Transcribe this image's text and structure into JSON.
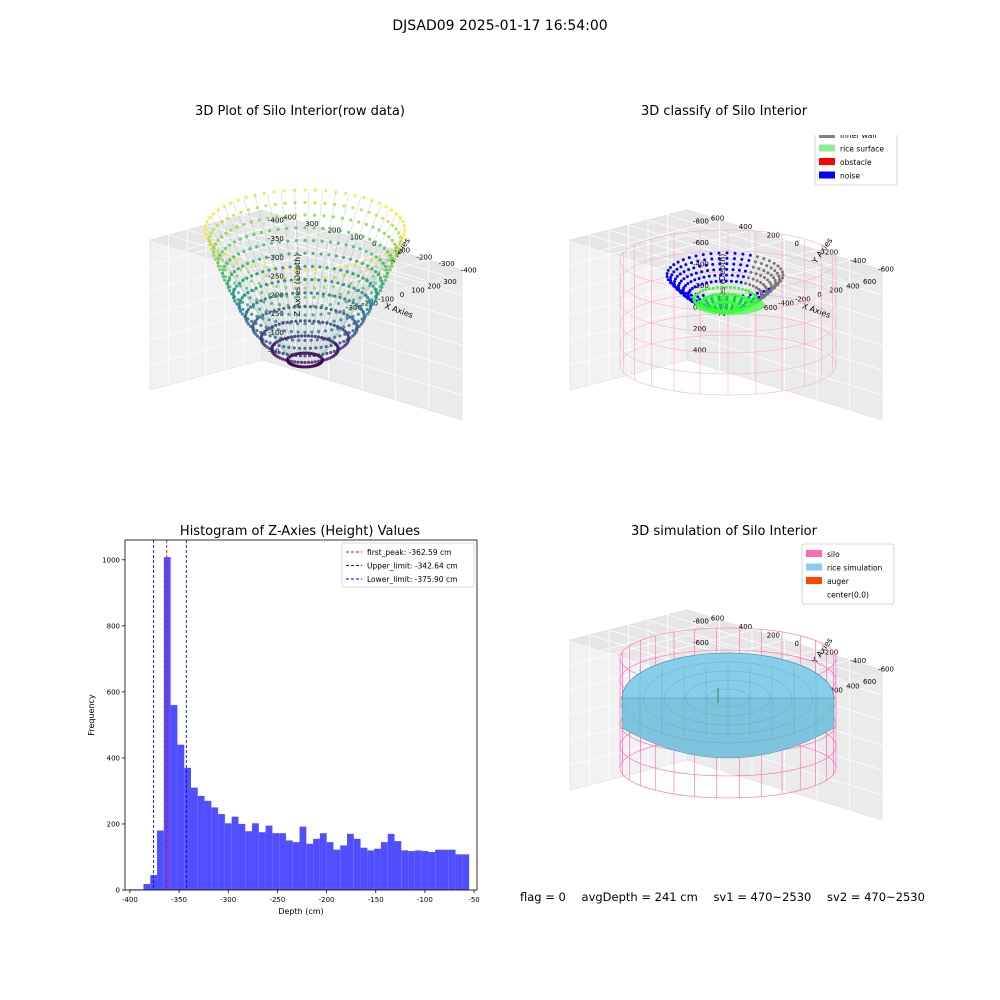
{
  "suptitle": "DJSAD09 2025-01-17 16:54:00",
  "chart_data": [
    {
      "type": "scatter3d",
      "title": "3D Plot of Silo Interior(row data)",
      "xlabel": "X Axies",
      "ylabel": "Y Axies",
      "zlabel": "Z Axies (Depth)",
      "xticks": [
        -300,
        -200,
        -100,
        0,
        100,
        200,
        300
      ],
      "yticks": [
        -400,
        -300,
        -200,
        -100,
        0,
        100,
        200,
        300,
        400
      ],
      "zticks": [
        -50,
        -100,
        -150,
        -200,
        -250,
        -300,
        -350,
        -400
      ],
      "colormap": "viridis"
    },
    {
      "type": "scatter3d",
      "title": "3D classify of Silo Interior",
      "xlabel": "X Axies",
      "ylabel": "Y Axies",
      "zlabel": "Z Axies (Depth)",
      "xticks": [
        -600,
        -400,
        -200,
        0,
        200,
        400,
        600
      ],
      "yticks": [
        -600,
        -400,
        -200,
        0,
        200,
        400,
        600
      ],
      "zticks": [
        400,
        200,
        0,
        -200,
        -400,
        -600,
        -800
      ],
      "legend_position": "top-right",
      "legend": [
        {
          "label": "inner wall",
          "color": "#808080"
        },
        {
          "label": "rice surface",
          "color": "#90ee90"
        },
        {
          "label": "obstacle",
          "color": "#ff0000"
        },
        {
          "label": "noise",
          "color": "#0000ff"
        }
      ]
    },
    {
      "type": "bar",
      "title": "Histogram of Z-Axies (Height) Values",
      "xlabel": "Depth (cm)",
      "ylabel": "Frequency",
      "xlim": [
        -405,
        -47
      ],
      "ylim": [
        0,
        1060
      ],
      "xticks": [
        -400,
        -350,
        -300,
        -250,
        -200,
        -150,
        -100,
        -50
      ],
      "yticks": [
        0,
        200,
        400,
        600,
        800,
        1000
      ],
      "bar_color": "#4f4fff",
      "bin_edges": [
        -400,
        -393.1,
        -386.2,
        -379.3,
        -372.4,
        -365.5,
        -358.6,
        -351.7,
        -344.8,
        -337.9,
        -331,
        -324.1,
        -317.2,
        -310.3,
        -303.4,
        -296.5,
        -289.6,
        -282.7,
        -275.8,
        -268.9,
        -262,
        -255.1,
        -248.2,
        -241.3,
        -234.4,
        -227.5,
        -220.6,
        -213.7,
        -206.8,
        -199.9,
        -193,
        -186.1,
        -179.2,
        -172.3,
        -165.4,
        -158.5,
        -151.6,
        -144.7,
        -137.8,
        -130.9,
        -124,
        -117.1,
        -110.2,
        -103.3,
        -96.4,
        -89.5,
        -82.6,
        -75.7,
        -68.8,
        -61.9,
        -55
      ],
      "values": [
        2,
        2,
        18,
        45,
        180,
        1008,
        560,
        440,
        370,
        310,
        285,
        270,
        250,
        230,
        202,
        222,
        200,
        178,
        202,
        175,
        195,
        172,
        172,
        150,
        145,
        192,
        140,
        155,
        172,
        145,
        122,
        135,
        170,
        155,
        128,
        120,
        125,
        145,
        170,
        148,
        120,
        118,
        120,
        118,
        115,
        122,
        122,
        122,
        108,
        108
      ],
      "legend_position": "top-right",
      "lines": [
        {
          "label": "first_peak: -362.59 cm",
          "x": -362.59,
          "color": "#ff0000"
        },
        {
          "label": "Upper_limit: -342.64 cm",
          "x": -342.64,
          "color": "#0000ff"
        },
        {
          "label": "Lower_limit: -375.90 cm",
          "x": -375.9,
          "color": "#0000ff"
        }
      ]
    },
    {
      "type": "surface3d",
      "title": "3D simulation of Silo Interior",
      "xlabel": "X Axies",
      "ylabel": "Y Axies",
      "zlabel": "Z Axies (Depth)",
      "xticks": [
        -600,
        -400,
        -200,
        0,
        200,
        400,
        600
      ],
      "yticks": [
        -600,
        -400,
        -200,
        0,
        200,
        400,
        600
      ],
      "zticks": [
        400,
        200,
        0,
        -200,
        -400,
        -600,
        -800
      ],
      "legend_position": "top-right",
      "legend": [
        {
          "label": "silo",
          "color": "#ff69b4"
        },
        {
          "label": "rice simulation",
          "color": "#87ceeb"
        },
        {
          "label": "auger",
          "color": "#ff4500"
        },
        {
          "label": "center(0,0)",
          "color": ""
        }
      ]
    }
  ],
  "footer": {
    "flag": "flag = 0",
    "avg": "avgDepth = 241 cm",
    "sv1": "sv1 = 470~2530",
    "sv2": "sv2 = 470~2530"
  }
}
